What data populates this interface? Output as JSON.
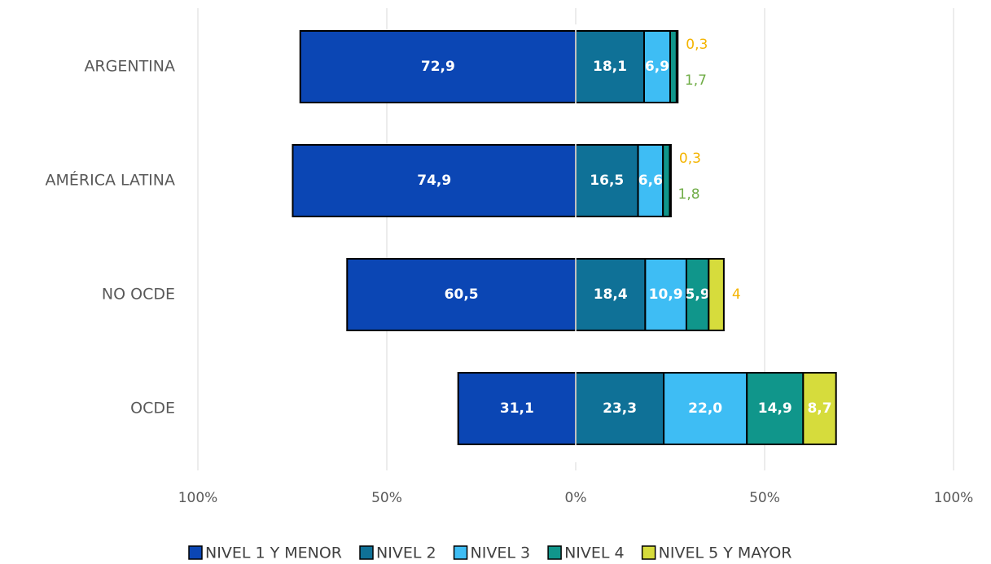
{
  "chart_data": {
    "type": "diverging_stacked_bar",
    "categories": [
      "ARGENTINA",
      "AMÉRICA LATINA",
      "NO OCDE",
      "OCDE"
    ],
    "series": [
      {
        "name": "NIVEL 1 Y MENOR",
        "color": "#0b46b4",
        "values": [
          -72.9,
          -74.9,
          -60.5,
          -31.1
        ],
        "value_labels": [
          "72,9",
          "74,9",
          "60,5",
          "31,1"
        ]
      },
      {
        "name": "NIVEL 2",
        "color": "#0f7197",
        "values": [
          18.1,
          16.5,
          18.4,
          23.3
        ],
        "value_labels": [
          "18,1",
          "16,5",
          "18,4",
          "23,3"
        ]
      },
      {
        "name": "NIVEL 3",
        "color": "#3ebdf4",
        "values": [
          6.9,
          6.6,
          10.9,
          22.0
        ],
        "value_labels": [
          "6,9",
          "6,6",
          "10,9",
          "22,0"
        ]
      },
      {
        "name": "NIVEL 4",
        "color": "#10968b",
        "label_color": "#70ad47",
        "values": [
          1.7,
          1.8,
          5.9,
          14.9
        ],
        "value_labels": [
          "1,7",
          "1,8",
          "5,9",
          "14,9"
        ]
      },
      {
        "name": "NIVEL 5 Y MAYOR",
        "color": "#d6dc3c",
        "label_color": "#f4b400",
        "values": [
          0.3,
          0.3,
          4,
          8.7
        ],
        "value_labels": [
          "0,3",
          "0,3",
          "4",
          "8,7"
        ]
      }
    ],
    "xlim": [
      -100,
      100
    ],
    "xticks": [
      {
        "value": -100,
        "label": "100%"
      },
      {
        "value": -50,
        "label": "50%"
      },
      {
        "value": 0,
        "label": "0%"
      },
      {
        "value": 50,
        "label": "50%"
      },
      {
        "value": 100,
        "label": "100%"
      }
    ],
    "grid": true,
    "legend": "bottom"
  }
}
